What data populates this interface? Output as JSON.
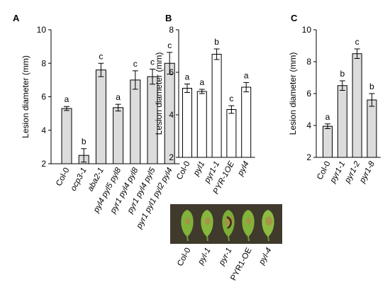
{
  "chart_data": [
    {
      "panel": "A",
      "type": "bar",
      "ylabel": "Lesion diameter  (mm)",
      "ylim": [
        2,
        10
      ],
      "yticks": [
        2,
        4,
        6,
        8,
        10
      ],
      "bar_color": "#dcdcdc",
      "categories": [
        "Col-0",
        "ocp3-1",
        "aba2-1",
        "pyl4 pyl5 pyl8",
        "pyr1 pyl4 pyl8",
        "pyr1 pyl4 pyl5",
        "pyr1 pyl1 pyl2 pyl4"
      ],
      "italic": [
        false,
        true,
        true,
        true,
        true,
        true,
        true
      ],
      "values": [
        5.3,
        2.5,
        7.6,
        5.35,
        7.0,
        7.2,
        8.0
      ],
      "errors": [
        0.12,
        0.4,
        0.4,
        0.2,
        0.55,
        0.45,
        0.65
      ],
      "letters": [
        "a",
        "b",
        "c",
        "a",
        "c",
        "c",
        "c"
      ]
    },
    {
      "panel": "B",
      "type": "bar",
      "ylabel": "Lesion diameter  (mm)",
      "ylim": [
        2,
        8
      ],
      "yticks": [
        2,
        4,
        6,
        8
      ],
      "bar_color": "#ffffff",
      "categories": [
        "Col-0",
        "pyl1",
        "pyr1-1",
        "PYR-1OE",
        "pyl4"
      ],
      "italic": [
        false,
        true,
        true,
        true,
        true
      ],
      "values": [
        5.25,
        5.1,
        6.85,
        4.25,
        5.3
      ],
      "errors": [
        0.2,
        0.1,
        0.25,
        0.18,
        0.22
      ],
      "letters": [
        "a",
        "a",
        "b",
        "c",
        "a"
      ]
    },
    {
      "panel": "C",
      "type": "bar",
      "ylabel": "Lesion diameter  (mm)",
      "ylim": [
        2,
        10
      ],
      "yticks": [
        2,
        4,
        6,
        8,
        10
      ],
      "bar_color": "#dcdcdc",
      "categories": [
        "Col-0",
        "pyr1-1",
        "pyr1-2",
        "pyr1-8"
      ],
      "italic": [
        false,
        true,
        true,
        true
      ],
      "values": [
        3.95,
        6.5,
        8.5,
        5.6
      ],
      "errors": [
        0.15,
        0.3,
        0.3,
        0.4
      ],
      "letters": [
        "a",
        "b",
        "c",
        "b"
      ]
    }
  ],
  "photo": {
    "labels": [
      "Col-0",
      "pyl-1",
      "pyr-1",
      "PYR1-OE",
      "pyl-4"
    ],
    "italic": [
      false,
      true,
      true,
      false,
      true
    ]
  }
}
